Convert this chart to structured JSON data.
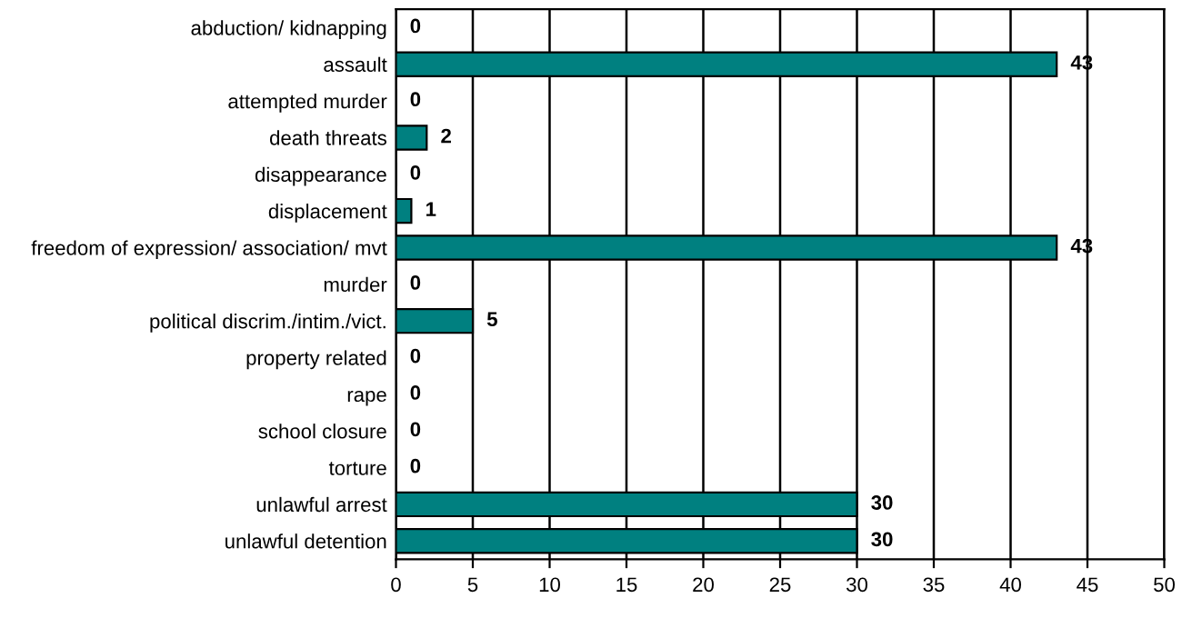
{
  "chart_data": {
    "type": "bar",
    "orientation": "horizontal",
    "categories": [
      "abduction/ kidnapping",
      "assault",
      "attempted murder",
      "death threats",
      "disappearance",
      "displacement",
      "freedom of expression/ association/ mvt",
      "murder",
      "political discrim./intim./vict.",
      "property related",
      "rape",
      "school closure",
      "torture",
      "unlawful arrest",
      "unlawful detention"
    ],
    "values": [
      0,
      43,
      0,
      2,
      0,
      1,
      43,
      0,
      5,
      0,
      0,
      0,
      0,
      30,
      30
    ],
    "color": "#008080",
    "xlim": [
      0,
      50
    ],
    "xticks": [
      0,
      5,
      10,
      15,
      20,
      25,
      30,
      35,
      40,
      45,
      50
    ],
    "grid": "x",
    "data_labels": true
  }
}
